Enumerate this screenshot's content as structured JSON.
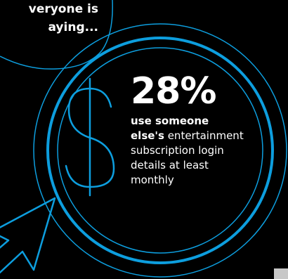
{
  "colors": {
    "background": "#000000",
    "accent": "#0d9ede",
    "text": "#ffffff"
  },
  "quote": {
    "line1": "veryone is",
    "line2": "aying..."
  },
  "stat": {
    "value": "28%",
    "highlight_line1": "use someone",
    "highlight_line2": "else's",
    "rest_line2": " entertainment",
    "line3": "subscription login",
    "line4": "details at least",
    "line5": "monthly"
  },
  "icons": {
    "currency": "dollar-sign-icon",
    "pointer": "cursor-arrow-icon"
  }
}
